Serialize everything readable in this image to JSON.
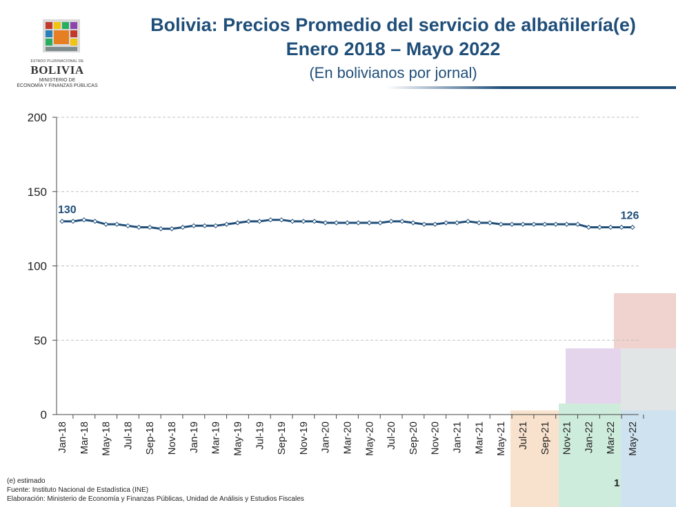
{
  "logo": {
    "line1": "ESTADO PLURINACIONAL DE",
    "line2": "BOLIVIA",
    "line3": "MINISTERIO DE",
    "line4": "ECONOMÍA Y FINANZAS PÚBLICAS"
  },
  "colors": {
    "series": "#1f4e79",
    "title": "#1f4e79",
    "grid": "#bfbfbf",
    "marker_fill": "#ffffff"
  },
  "chart_data": {
    "type": "line",
    "title": "Bolivia: Precios Promedio del servicio de albañilería(e)",
    "subtitle": "Enero 2018 – Mayo 2022",
    "unit_note": "(En bolivianos por jornal)",
    "xlabel": "",
    "ylabel": "",
    "ylim": [
      0,
      200
    ],
    "yticks": [
      0,
      50,
      100,
      150,
      200
    ],
    "grid": true,
    "legend": "none",
    "x": [
      "Jan-18",
      "Feb-18",
      "Mar-18",
      "Apr-18",
      "May-18",
      "Jun-18",
      "Jul-18",
      "Aug-18",
      "Sep-18",
      "Oct-18",
      "Nov-18",
      "Dec-18",
      "Jan-19",
      "Feb-19",
      "Mar-19",
      "Apr-19",
      "May-19",
      "Jun-19",
      "Jul-19",
      "Aug-19",
      "Sep-19",
      "Oct-19",
      "Nov-19",
      "Dec-19",
      "Jan-20",
      "Feb-20",
      "Mar-20",
      "Apr-20",
      "May-20",
      "Jun-20",
      "Jul-20",
      "Aug-20",
      "Sep-20",
      "Oct-20",
      "Nov-20",
      "Dec-20",
      "Jan-21",
      "Feb-21",
      "Mar-21",
      "Apr-21",
      "May-21",
      "Jun-21",
      "Jul-21",
      "Aug-21",
      "Sep-21",
      "Oct-21",
      "Nov-21",
      "Dec-21",
      "Jan-22",
      "Feb-22",
      "Mar-22",
      "Apr-22",
      "May-22"
    ],
    "xtick_labels": [
      "Jan-18",
      "Mar-18",
      "May-18",
      "Jul-18",
      "Sep-18",
      "Nov-18",
      "Jan-19",
      "Mar-19",
      "May-19",
      "Jul-19",
      "Sep-19",
      "Nov-19",
      "Jan-20",
      "Mar-20",
      "May-20",
      "Jul-20",
      "Sep-20",
      "Nov-20",
      "Jan-21",
      "Mar-21",
      "May-21",
      "Jul-21",
      "Sep-21",
      "Nov-21",
      "Jan-22",
      "Mar-22",
      "May-22"
    ],
    "values": [
      130,
      130,
      131,
      130,
      128,
      128,
      127,
      126,
      126,
      125,
      125,
      126,
      127,
      127,
      127,
      128,
      129,
      130,
      130,
      131,
      131,
      130,
      130,
      130,
      129,
      129,
      129,
      129,
      129,
      129,
      130,
      130,
      129,
      128,
      128,
      129,
      129,
      130,
      129,
      129,
      128,
      128,
      128,
      128,
      128,
      128,
      128,
      128,
      126,
      126,
      126,
      126,
      126
    ],
    "data_labels": [
      {
        "index": 0,
        "text": "130"
      },
      {
        "index": 52,
        "text": "126"
      }
    ]
  },
  "footer": {
    "note": "(e) estimado",
    "source": "Fuente: Instituto Nacional de Estadística (INE)",
    "elaboration": "Elaboración: Ministerio de Economía y Finanzas Públicas, Unidad de Análisis y Estudios Fiscales",
    "page_number": "1"
  }
}
